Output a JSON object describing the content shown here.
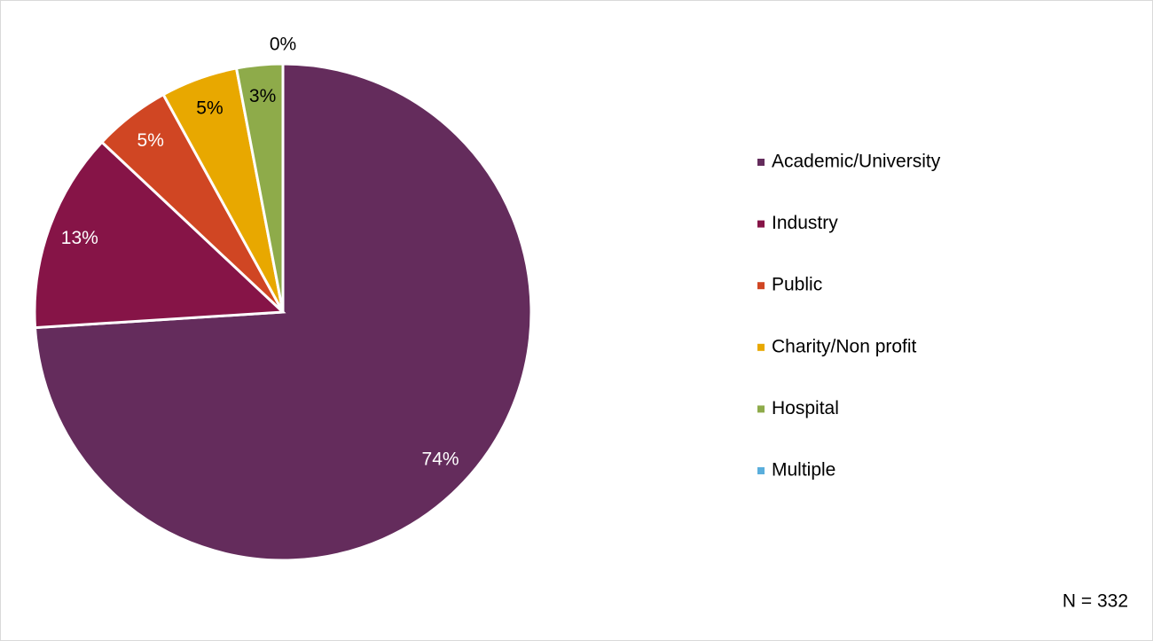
{
  "chart_data": {
    "type": "pie",
    "categories": [
      "Academic/University",
      "Industry",
      "Public",
      "Charity/Non profit",
      "Hospital",
      "Multiple"
    ],
    "values": [
      74,
      13,
      5,
      5,
      3,
      0
    ],
    "value_labels": [
      "74%",
      "13%",
      "5%",
      "5%",
      "3%",
      "0%"
    ],
    "colors": [
      "#642c5c",
      "#861447",
      "#d04623",
      "#e8a800",
      "#8eab4a",
      "#5aaedc"
    ],
    "annotation": "N = 332",
    "legend": "right"
  }
}
